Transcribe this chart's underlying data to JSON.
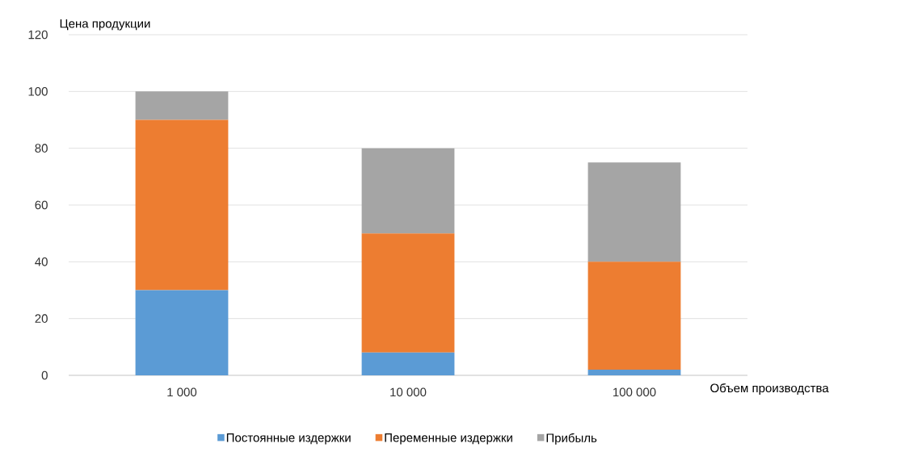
{
  "chart_data": {
    "type": "bar",
    "stacked": true,
    "ylabel": "Цена продукции",
    "xlabel": "Объем производства",
    "categories": [
      "1 000",
      "10 000",
      "100 000"
    ],
    "series": [
      {
        "name": "Постоянные издержки",
        "color": "#5b9bd5",
        "values": [
          30,
          8,
          2
        ]
      },
      {
        "name": "Переменные издержки",
        "color": "#ed7d31",
        "values": [
          60,
          42,
          38
        ]
      },
      {
        "name": "Прибыль",
        "color": "#a5a5a5",
        "values": [
          10,
          30,
          35
        ]
      }
    ],
    "ylim": [
      0,
      120
    ],
    "yticks": [
      0,
      20,
      40,
      60,
      80,
      100,
      120
    ],
    "grid": "y",
    "legend": "bottom"
  }
}
